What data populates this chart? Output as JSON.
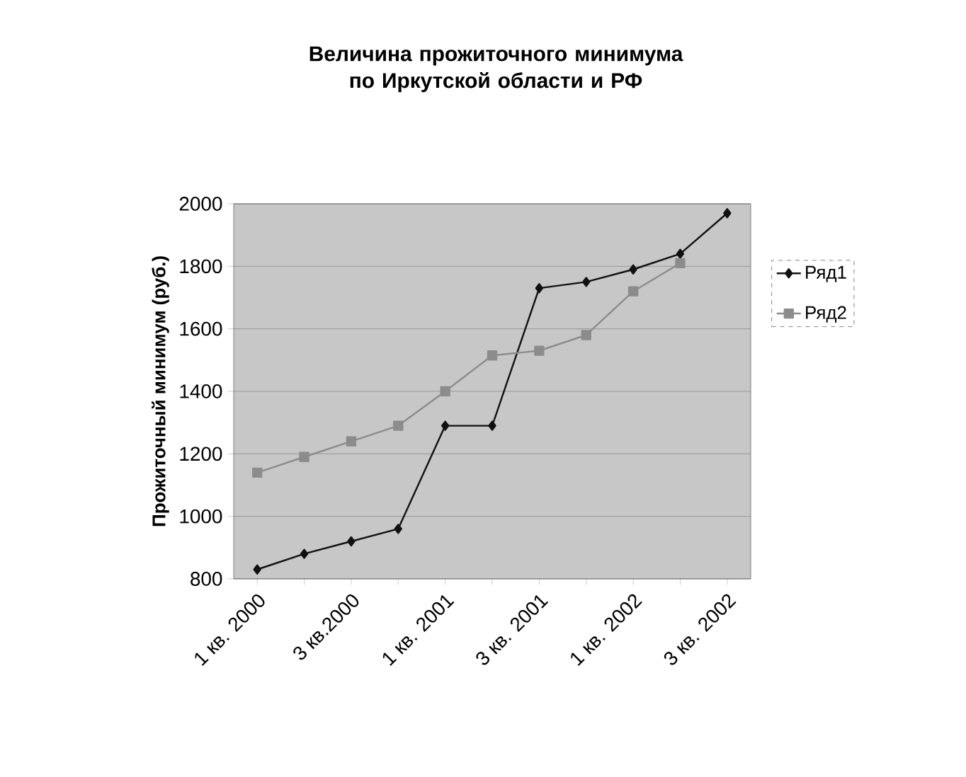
{
  "chart_data": {
    "type": "line",
    "title": "Величина прожиточного минимума по Иркутской области и РФ",
    "ylabel": "Прожиточный минимум (руб.)",
    "categories": [
      "1 кв. 2000",
      null,
      "3 кв.2000",
      null,
      "1 кв. 2001",
      null,
      "3 кв. 2001",
      null,
      "1 кв. 2002",
      null,
      "3 кв. 2002"
    ],
    "series": [
      {
        "name": "Ряд1",
        "color": "#111111",
        "marker": "diamond",
        "values": [
          830,
          880,
          920,
          960,
          1290,
          1290,
          1730,
          1750,
          1790,
          1840,
          1970
        ]
      },
      {
        "name": "Ряд2",
        "color": "#8c8c8c",
        "marker": "square",
        "values": [
          1140,
          1190,
          1240,
          1290,
          1400,
          1515,
          1530,
          1580,
          1720,
          1810,
          null
        ]
      }
    ],
    "ylim": [
      800,
      2000
    ],
    "yticks": [
      800,
      1000,
      1200,
      1400,
      1600,
      1800,
      2000
    ],
    "grid": "y",
    "legend": "right",
    "line_style": "solid"
  }
}
